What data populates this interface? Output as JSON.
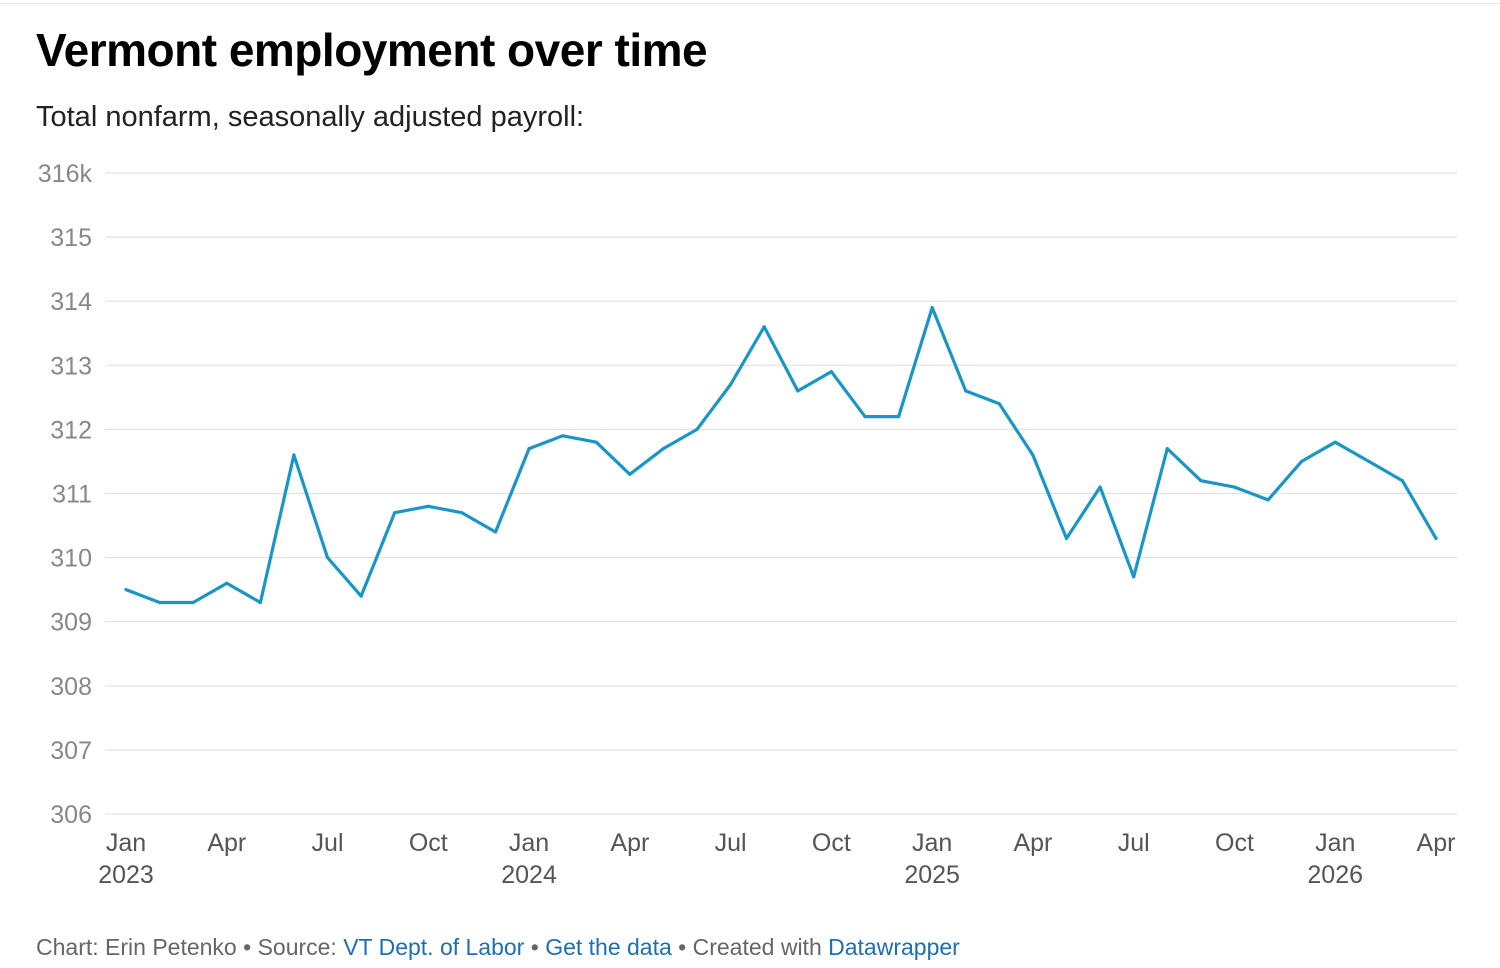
{
  "chart_data": {
    "type": "line",
    "title": "Vermont employment over time",
    "subtitle": "Total nonfarm, seasonally adjusted payroll:",
    "xlabel": "",
    "ylabel": "",
    "ylim": [
      306,
      316
    ],
    "y_ticks": [
      {
        "value": 306,
        "label": "306"
      },
      {
        "value": 307,
        "label": "307"
      },
      {
        "value": 308,
        "label": "308"
      },
      {
        "value": 309,
        "label": "309"
      },
      {
        "value": 310,
        "label": "310"
      },
      {
        "value": 311,
        "label": "311"
      },
      {
        "value": 312,
        "label": "312"
      },
      {
        "value": 313,
        "label": "313"
      },
      {
        "value": 314,
        "label": "314"
      },
      {
        "value": 315,
        "label": "315"
      },
      {
        "value": 316,
        "label": "316k"
      }
    ],
    "x_ticks": [
      {
        "date": "2023-01",
        "month": "Jan",
        "year": "2023"
      },
      {
        "date": "2023-04",
        "month": "Apr",
        "year": ""
      },
      {
        "date": "2023-07",
        "month": "Jul",
        "year": ""
      },
      {
        "date": "2023-10",
        "month": "Oct",
        "year": ""
      },
      {
        "date": "2024-01",
        "month": "Jan",
        "year": "2024"
      },
      {
        "date": "2024-04",
        "month": "Apr",
        "year": ""
      },
      {
        "date": "2024-07",
        "month": "Jul",
        "year": ""
      },
      {
        "date": "2024-10",
        "month": "Oct",
        "year": ""
      },
      {
        "date": "2025-01",
        "month": "Jan",
        "year": "2025"
      },
      {
        "date": "2025-04",
        "month": "Apr",
        "year": ""
      },
      {
        "date": "2025-07",
        "month": "Jul",
        "year": ""
      },
      {
        "date": "2025-10",
        "month": "Oct",
        "year": ""
      },
      {
        "date": "2026-01",
        "month": "Jan",
        "year": "2026"
      },
      {
        "date": "2026-04",
        "month": "Apr",
        "year": ""
      }
    ],
    "x": [
      "2023-01",
      "2023-02",
      "2023-03",
      "2023-04",
      "2023-05",
      "2023-06",
      "2023-07",
      "2023-08",
      "2023-09",
      "2023-10",
      "2023-11",
      "2023-12",
      "2024-01",
      "2024-02",
      "2024-03",
      "2024-04",
      "2024-05",
      "2024-06",
      "2024-07",
      "2024-08",
      "2024-09",
      "2024-10",
      "2024-11",
      "2024-12",
      "2025-01",
      "2025-02",
      "2025-03",
      "2025-04",
      "2025-05",
      "2025-06",
      "2025-07",
      "2025-08",
      "2025-09",
      "2025-10",
      "2025-11",
      "2025-12",
      "2026-01",
      "2026-02",
      "2026-03",
      "2026-04"
    ],
    "series": [
      {
        "color": "#1a96c6",
        "values": [
          309.5,
          309.3,
          309.3,
          309.6,
          309.3,
          311.6,
          310.0,
          309.4,
          310.7,
          310.8,
          310.7,
          310.4,
          311.7,
          311.9,
          311.8,
          311.3,
          311.7,
          312.0,
          312.7,
          313.6,
          312.6,
          312.9,
          312.2,
          312.2,
          313.9,
          312.6,
          312.4,
          311.6,
          310.3,
          311.1,
          309.7,
          311.7,
          311.2,
          311.1,
          310.9,
          311.5,
          311.8,
          311.5,
          311.2,
          310.3
        ]
      }
    ],
    "grid": true,
    "legend": "none"
  },
  "footer": {
    "chart_prefix": "Chart: Erin Petenko",
    "separator": " • ",
    "source_prefix": "Source: ",
    "source_link": "VT Dept. of Labor",
    "get_data_link": "Get the data",
    "created_prefix": "Created with ",
    "datawrapper_link": "Datawrapper"
  },
  "colors": {
    "line": "#1a96c6",
    "grid": "#e3e3e3",
    "axis_text": "#888888",
    "x_text": "#555555",
    "link": "#1d6fb4"
  }
}
